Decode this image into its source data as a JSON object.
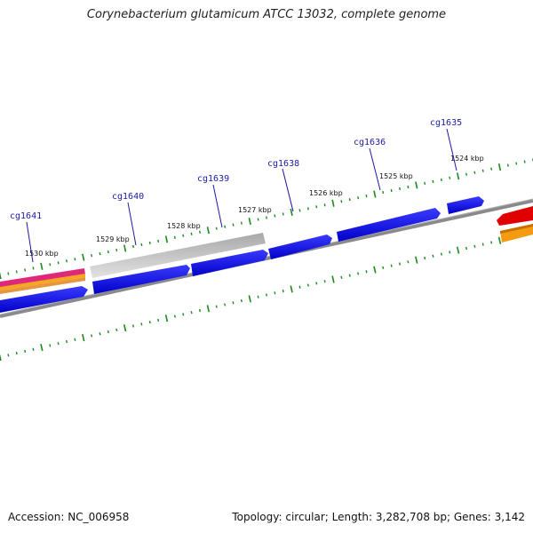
{
  "title": "Corynebacterium glutamicum ATCC 13032, complete genome",
  "footer": {
    "accession": "Accession: NC_006958",
    "info": "Topology: circular; Length: 3,282,708 bp; Genes: 3,142"
  },
  "colors": {
    "backbone": "#7a7a7a",
    "tick": "#1a8a1a",
    "gene_label": "#1a1aa6",
    "forward_gene": "#0000ee",
    "pseudo_gene": "#b8b8b8",
    "red_feature": "#e00000",
    "orange_feature": "#f39c12",
    "magenta_feature": "#e0287a"
  },
  "genes": [
    {
      "name": "cg1641"
    },
    {
      "name": "cg1640"
    },
    {
      "name": "cg1639"
    },
    {
      "name": "cg1638"
    },
    {
      "name": "cg1636"
    },
    {
      "name": "cg1635"
    }
  ],
  "kbp_marks": [
    {
      "label": "1530 kbp"
    },
    {
      "label": "1529 kbp"
    },
    {
      "label": "1528 kbp"
    },
    {
      "label": "1527 kbp"
    },
    {
      "label": "1526 kbp"
    },
    {
      "label": "1525 kbp"
    },
    {
      "label": "1524 kbp"
    }
  ]
}
